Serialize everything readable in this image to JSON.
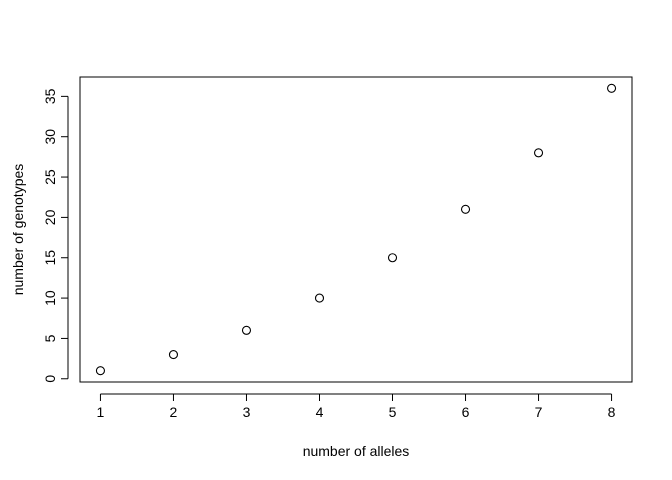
{
  "chart_data": {
    "type": "scatter",
    "title": "",
    "xlabel": "number of alleles",
    "ylabel": "number of genotypes",
    "x": [
      1,
      2,
      3,
      4,
      5,
      6,
      7,
      8
    ],
    "y": [
      1,
      3,
      6,
      10,
      15,
      21,
      28,
      36
    ],
    "xlim": [
      0.72,
      8.28
    ],
    "ylim": [
      -0.4,
      37.4
    ],
    "xticks": [
      1,
      2,
      3,
      4,
      5,
      6,
      7,
      8
    ],
    "yticks": [
      0,
      5,
      10,
      15,
      20,
      25,
      30,
      35
    ],
    "marker": "open-circle",
    "grid": false,
    "legend": "none",
    "colors": {
      "point": "#000000",
      "axis": "#000000",
      "box": "#000000"
    }
  }
}
